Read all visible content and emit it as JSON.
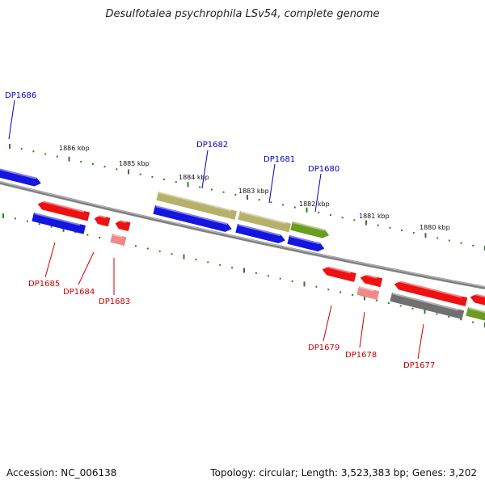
{
  "title": "Desulfotalea psychrophila LSv54, complete genome",
  "footer": {
    "accession": "Accession: NC_006138",
    "summary": "Topology: circular; Length: 3,523,383 bp; Genes: 3,202"
  },
  "colors": {
    "backbone": "#808080",
    "tick": "#2e7d1e",
    "label_forward": "#0000cc",
    "label_reverse": "#cc0000",
    "blue": "#1515e0",
    "red": "#ee1111",
    "pink": "#f08a8a",
    "khaki": "#b7b06a",
    "olive": "#6b9b20",
    "gray": "#707070"
  },
  "kbp_labels": [
    "1886 kbp",
    "1885 kbp",
    "1884 kbp",
    "1883 kbp",
    "1882 kbp",
    "1881 kbp",
    "1880 kbp"
  ],
  "genes": [
    {
      "label": "DP1686",
      "strand": "forward"
    },
    {
      "label": "DP1682",
      "strand": "forward"
    },
    {
      "label": "DP1681",
      "strand": "forward"
    },
    {
      "label": "DP1680",
      "strand": "forward"
    },
    {
      "label": "DP1685",
      "strand": "reverse"
    },
    {
      "label": "DP1684",
      "strand": "reverse"
    },
    {
      "label": "DP1683",
      "strand": "reverse"
    },
    {
      "label": "DP1679",
      "strand": "reverse"
    },
    {
      "label": "DP1678",
      "strand": "reverse"
    },
    {
      "label": "DP1677",
      "strand": "reverse"
    }
  ]
}
